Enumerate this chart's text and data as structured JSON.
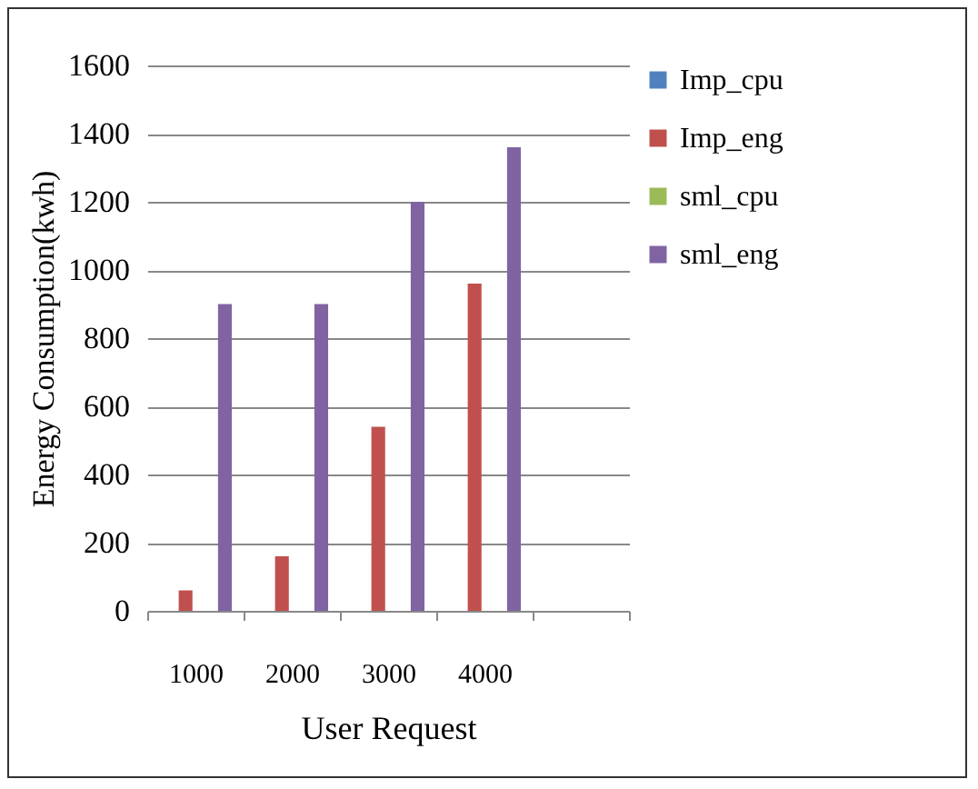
{
  "chart_data": {
    "type": "bar",
    "xlabel": "User Request",
    "ylabel": "Energy Consumption(kwh)",
    "categories": [
      "1000",
      "2000",
      "3000",
      "4000",
      null
    ],
    "series": [
      {
        "name": "Imp_cpu",
        "color": "#4f81bd",
        "values": [
          0,
          0,
          0,
          0,
          null
        ]
      },
      {
        "name": "Imp_eng",
        "color": "#c0504d",
        "values": [
          60,
          160,
          540,
          960,
          null
        ]
      },
      {
        "name": "sml_cpu",
        "color": "#9bbb59",
        "values": [
          0,
          0,
          0,
          0,
          null
        ]
      },
      {
        "name": "sml_eng",
        "color": "#8064a2",
        "values": [
          900,
          900,
          1200,
          1360,
          null
        ]
      }
    ],
    "ylim": [
      0,
      1600
    ],
    "yticks": [
      0,
      200,
      400,
      600,
      800,
      1000,
      1200,
      1400,
      1600
    ],
    "grid": "y",
    "legend": "right"
  }
}
